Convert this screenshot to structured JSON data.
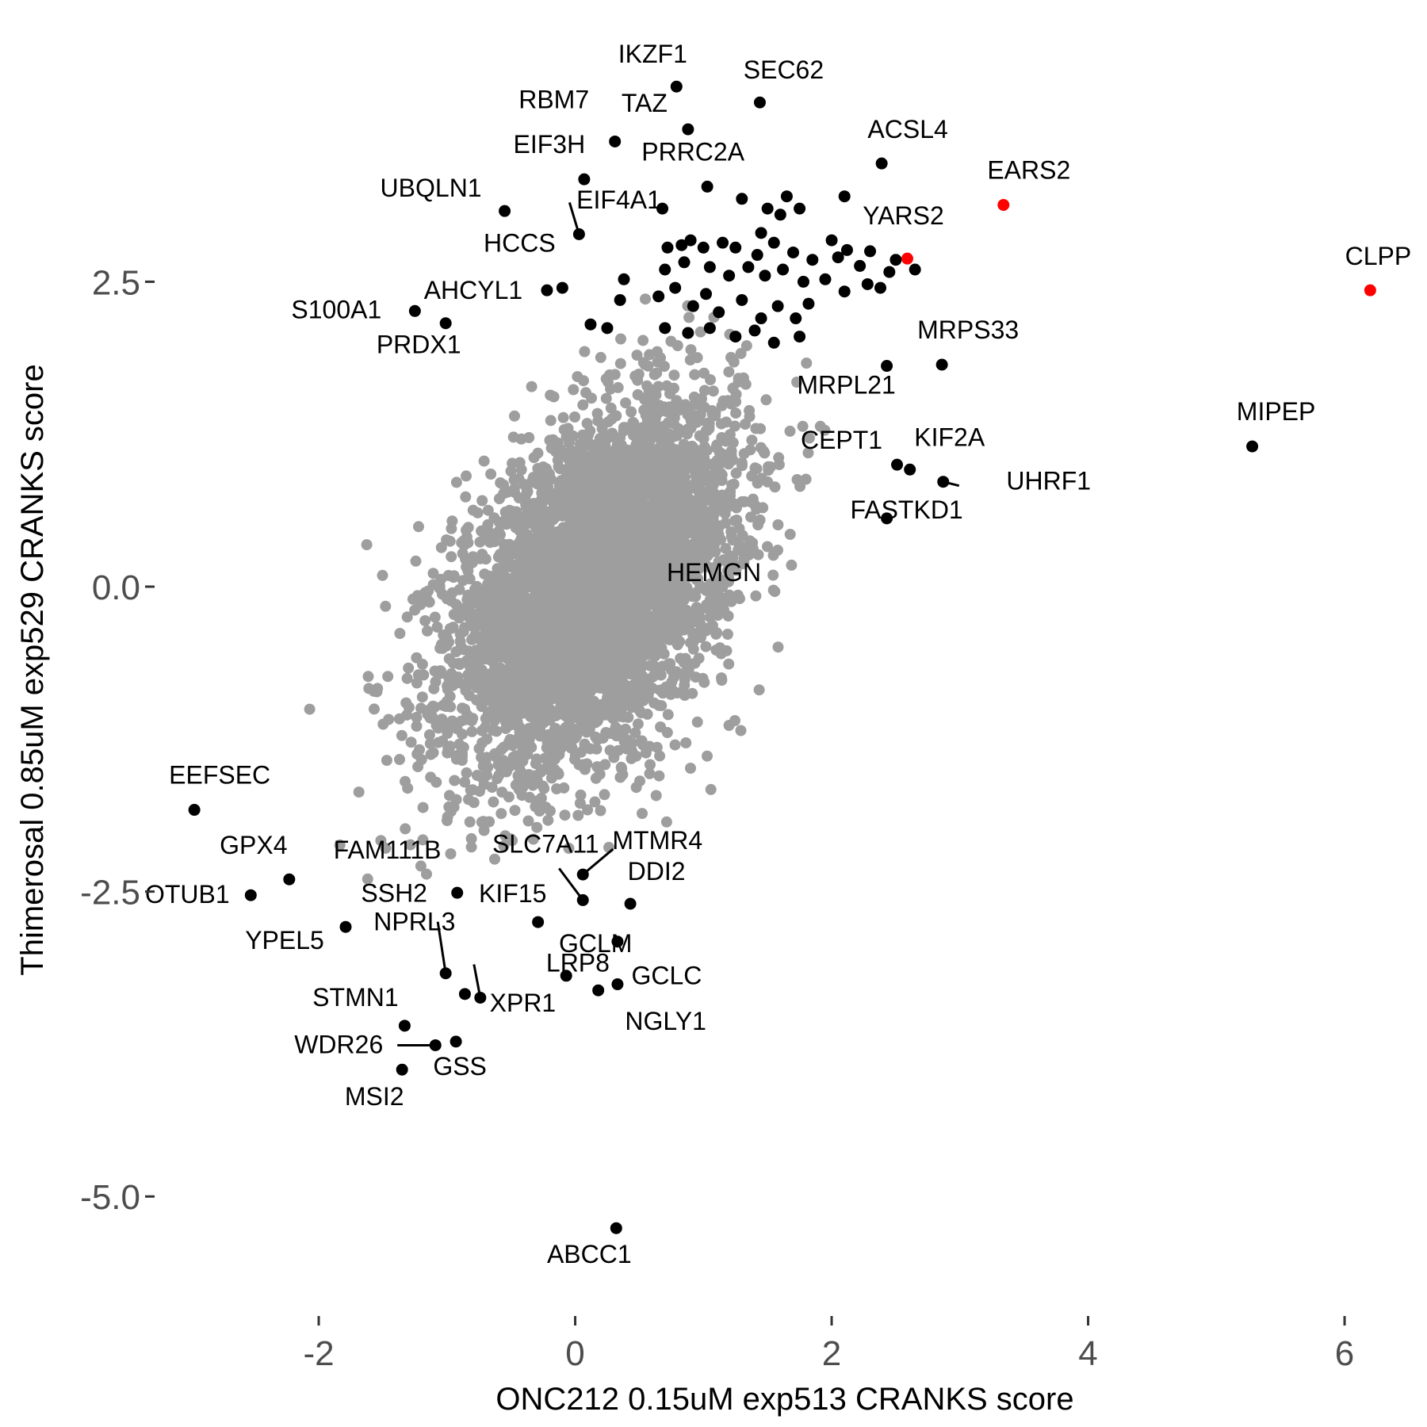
{
  "chart_data": {
    "type": "scatter",
    "xlabel": "ONC212 0.15uM exp513 CRANKS score",
    "ylabel": "Thimerosal 0.85uM exp529 CRANKS score",
    "xlim": [
      -3.28,
      6.55
    ],
    "ylim": [
      -5.85,
      4.68
    ],
    "x_ticks": [
      {
        "value": -2,
        "label": "-2"
      },
      {
        "value": 0,
        "label": "0"
      },
      {
        "value": 2,
        "label": "2"
      },
      {
        "value": 4,
        "label": "4"
      },
      {
        "value": 6,
        "label": "6"
      }
    ],
    "y_ticks": [
      {
        "value": 2.5,
        "label": "2.5"
      },
      {
        "value": 0,
        "label": "0.0"
      },
      {
        "value": -2.5,
        "label": "-2.5"
      },
      {
        "value": -5,
        "label": "-5.0"
      }
    ],
    "grid": false,
    "colors": {
      "background": "#ffffff",
      "cloud": "#9e9e9e",
      "highlight": "#000000",
      "mitochondrial": "#ff0000"
    },
    "background_cloud": {
      "n_points": 5000,
      "x_mean": 0.15,
      "y_mean": 0.0,
      "x_sd": 0.55,
      "y_sd": 0.72,
      "correlation": 0.45,
      "x_range": [
        -2.75,
        2.45
      ],
      "y_range": [
        -2.6,
        2.4
      ]
    },
    "points": [
      {
        "gene": "IKZF1",
        "x": 0.79,
        "y": 4.1,
        "color": "#000000"
      },
      {
        "gene": "SEC62",
        "x": 1.44,
        "y": 3.97,
        "color": "#000000"
      },
      {
        "gene": "TAZ",
        "x": 0.88,
        "y": 3.75,
        "color": "#000000"
      },
      {
        "gene": "RBM7",
        "x": 0.31,
        "y": 3.65,
        "color": "#000000"
      },
      {
        "gene": "ACSL4",
        "x": 2.39,
        "y": 3.47,
        "color": "#000000"
      },
      {
        "gene": "EIF3H",
        "x": 0.07,
        "y": 3.34,
        "color": "#000000"
      },
      {
        "gene": "PRRC2A",
        "x": 1.03,
        "y": 3.28,
        "color": "#000000"
      },
      {
        "gene": "EARS2",
        "x": 3.34,
        "y": 3.13,
        "color": "#ff0000"
      },
      {
        "gene": "UBQLN1",
        "x": -0.55,
        "y": 3.08,
        "color": "#000000"
      },
      {
        "gene": "EIF4A1",
        "x": 0.68,
        "y": 3.1,
        "color": "#000000"
      },
      {
        "gene": "HCCS",
        "x": 0.03,
        "y": 2.89,
        "color": "#000000"
      },
      {
        "gene": "YARS2",
        "x": 2.59,
        "y": 2.69,
        "color": "#ff0000"
      },
      {
        "gene": "CLPP",
        "x": 6.2,
        "y": 2.43,
        "color": "#ff0000"
      },
      {
        "gene": "AHCYL1",
        "x": -0.22,
        "y": 2.43,
        "color": "#000000"
      },
      {
        "gene": "S100A1",
        "x": -1.25,
        "y": 2.26,
        "color": "#000000"
      },
      {
        "gene": "PRDX1",
        "x": -1.01,
        "y": 2.16,
        "color": "#000000"
      },
      {
        "gene": "MRPS33",
        "x": 2.86,
        "y": 1.82,
        "color": "#000000"
      },
      {
        "gene": "MRPL21",
        "x": 2.43,
        "y": 1.81,
        "color": "#000000"
      },
      {
        "gene": "MIPEP",
        "x": 5.28,
        "y": 1.15,
        "color": "#000000"
      },
      {
        "gene": "CEPT1",
        "x": 2.51,
        "y": 1.0,
        "color": "#000000"
      },
      {
        "gene": "KIF2A",
        "x": 2.61,
        "y": 0.96,
        "color": "#000000"
      },
      {
        "gene": "UHRF1",
        "x": 2.87,
        "y": 0.86,
        "color": "#000000"
      },
      {
        "gene": "FASTKD1",
        "x": 2.43,
        "y": 0.56,
        "color": "#000000"
      },
      {
        "gene": "EEFSEC",
        "x": -2.97,
        "y": -1.83,
        "color": "#000000"
      },
      {
        "gene": "GPX4",
        "x": -2.23,
        "y": -2.4,
        "color": "#000000"
      },
      {
        "gene": "OTUB1",
        "x": -2.53,
        "y": -2.53,
        "color": "#000000"
      },
      {
        "gene": "MTMR4",
        "x": 0.06,
        "y": -2.36,
        "color": "#000000"
      },
      {
        "gene": "KIF15",
        "x": -0.92,
        "y": -2.51,
        "color": "#000000"
      },
      {
        "gene": "SLC7A11",
        "x": 0.06,
        "y": -2.57,
        "color": "#000000"
      },
      {
        "gene": "DDI2",
        "x": 0.43,
        "y": -2.6,
        "color": "#000000"
      },
      {
        "gene": "YPEL5",
        "x": -1.79,
        "y": -2.79,
        "color": "#000000"
      },
      {
        "gene": "FAM111B",
        "x": -0.29,
        "y": -2.75,
        "color": "#000000"
      },
      {
        "gene": "LRP8",
        "x": 0.33,
        "y": -2.91,
        "color": "#000000"
      },
      {
        "gene": "SSH2",
        "x": -1.01,
        "y": -3.17,
        "color": "#000000"
      },
      {
        "gene": "GCLM",
        "x": -0.07,
        "y": -3.19,
        "color": "#000000"
      },
      {
        "gene": "GCLC",
        "x": 0.33,
        "y": -3.26,
        "color": "#000000"
      },
      {
        "gene": "NGLY1",
        "x": 0.18,
        "y": -3.31,
        "color": "#000000"
      },
      {
        "gene": "XPR1",
        "x": -0.86,
        "y": -3.34,
        "color": "#000000"
      },
      {
        "gene": "NPRL3",
        "x": -0.74,
        "y": -3.37,
        "color": "#000000"
      },
      {
        "gene": "STMN1",
        "x": -1.33,
        "y": -3.6,
        "color": "#000000"
      },
      {
        "gene": "GSS",
        "x": -0.93,
        "y": -3.73,
        "color": "#000000"
      },
      {
        "gene": "WDR26",
        "x": -1.09,
        "y": -3.76,
        "color": "#000000"
      },
      {
        "gene": "MSI2",
        "x": -1.35,
        "y": -3.96,
        "color": "#000000"
      },
      {
        "gene": "HEMGN",
        "x": 2.38,
        "y": 2.45,
        "color": "#000000"
      },
      {
        "gene": "ABCC1",
        "x": 0.32,
        "y": -5.26,
        "color": "#000000"
      }
    ],
    "extra_points": [
      {
        "x": 0.72,
        "y": 2.78
      },
      {
        "x": 0.83,
        "y": 2.8
      },
      {
        "x": 0.9,
        "y": 2.84
      },
      {
        "x": 1.0,
        "y": 2.78
      },
      {
        "x": 1.15,
        "y": 2.82
      },
      {
        "x": 1.25,
        "y": 2.78
      },
      {
        "x": 1.42,
        "y": 2.72
      },
      {
        "x": 1.55,
        "y": 2.82
      },
      {
        "x": 1.7,
        "y": 2.74
      },
      {
        "x": 1.85,
        "y": 2.68
      },
      {
        "x": 2.0,
        "y": 2.84
      },
      {
        "x": 2.12,
        "y": 2.76
      },
      {
        "x": 2.22,
        "y": 2.63
      },
      {
        "x": 0.7,
        "y": 2.6
      },
      {
        "x": 0.85,
        "y": 2.66
      },
      {
        "x": 1.05,
        "y": 2.62
      },
      {
        "x": 1.2,
        "y": 2.55
      },
      {
        "x": 1.35,
        "y": 2.62
      },
      {
        "x": 1.48,
        "y": 2.55
      },
      {
        "x": 1.62,
        "y": 2.6
      },
      {
        "x": 1.78,
        "y": 2.5
      },
      {
        "x": 1.95,
        "y": 2.52
      },
      {
        "x": 2.1,
        "y": 2.42
      },
      {
        "x": 2.28,
        "y": 2.48
      },
      {
        "x": 0.65,
        "y": 2.38
      },
      {
        "x": 0.78,
        "y": 2.45
      },
      {
        "x": 0.92,
        "y": 2.3
      },
      {
        "x": 1.02,
        "y": 2.4
      },
      {
        "x": 1.12,
        "y": 2.25
      },
      {
        "x": 1.3,
        "y": 2.35
      },
      {
        "x": 1.45,
        "y": 2.2
      },
      {
        "x": 1.58,
        "y": 2.3
      },
      {
        "x": 1.72,
        "y": 2.2
      },
      {
        "x": 1.82,
        "y": 2.32
      },
      {
        "x": 0.7,
        "y": 2.12
      },
      {
        "x": 0.88,
        "y": 2.08
      },
      {
        "x": 1.05,
        "y": 2.12
      },
      {
        "x": 1.25,
        "y": 2.05
      },
      {
        "x": 1.4,
        "y": 2.1
      },
      {
        "x": 1.55,
        "y": 2.0
      },
      {
        "x": 1.75,
        "y": 2.05
      },
      {
        "x": 0.12,
        "y": 2.15
      },
      {
        "x": 0.25,
        "y": 2.12
      },
      {
        "x": 0.38,
        "y": 2.52
      },
      {
        "x": 0.35,
        "y": 2.35
      },
      {
        "x": -0.1,
        "y": 2.45
      },
      {
        "x": 1.6,
        "y": 3.05
      },
      {
        "x": 1.75,
        "y": 3.1
      },
      {
        "x": 1.5,
        "y": 3.1
      },
      {
        "x": 2.1,
        "y": 3.2
      },
      {
        "x": 1.3,
        "y": 3.18
      },
      {
        "x": 1.65,
        "y": 3.2
      },
      {
        "x": 1.45,
        "y": 2.9
      },
      {
        "x": 2.05,
        "y": 2.7
      },
      {
        "x": 2.3,
        "y": 2.75
      },
      {
        "x": 2.5,
        "y": 2.68
      },
      {
        "x": 2.65,
        "y": 2.6
      },
      {
        "x": 2.45,
        "y": 2.58
      }
    ]
  }
}
